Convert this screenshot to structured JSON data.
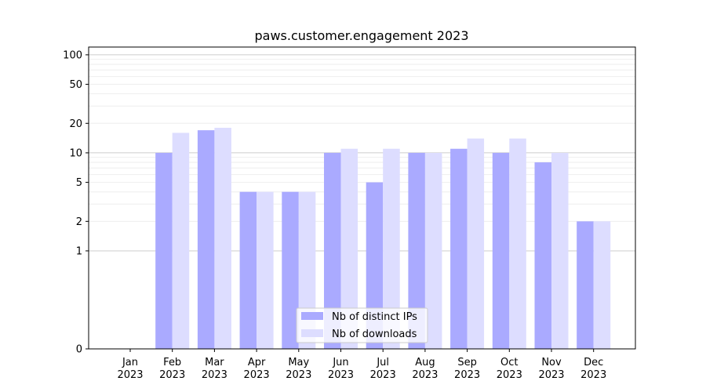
{
  "chart_data": {
    "type": "bar",
    "title": "paws.customer.engagement 2023",
    "xlabel": "",
    "ylabel": "",
    "y_scale": "symlog",
    "ylim": [
      0,
      120
    ],
    "y_ticks": [
      0,
      1,
      2,
      5,
      10,
      20,
      50,
      100
    ],
    "y_tick_labels": [
      "0",
      "1",
      "2",
      "5",
      "10",
      "20",
      "50",
      "100"
    ],
    "grid": "y",
    "legend_position": "bottom-center",
    "categories": [
      [
        "Jan",
        "2023"
      ],
      [
        "Feb",
        "2023"
      ],
      [
        "Mar",
        "2023"
      ],
      [
        "Apr",
        "2023"
      ],
      [
        "May",
        "2023"
      ],
      [
        "Jun",
        "2023"
      ],
      [
        "Jul",
        "2023"
      ],
      [
        "Aug",
        "2023"
      ],
      [
        "Sep",
        "2023"
      ],
      [
        "Oct",
        "2023"
      ],
      [
        "Nov",
        "2023"
      ],
      [
        "Dec",
        "2023"
      ]
    ],
    "series": [
      {
        "name": "Nb of distinct IPs",
        "color": "#aaaaff",
        "values": [
          0,
          10,
          17,
          4,
          4,
          10,
          5,
          10,
          11,
          10,
          8,
          2
        ]
      },
      {
        "name": "Nb of downloads",
        "color": "#ddddff",
        "values": [
          0,
          16,
          18,
          4,
          4,
          11,
          11,
          10,
          14,
          14,
          10,
          2
        ]
      }
    ]
  }
}
